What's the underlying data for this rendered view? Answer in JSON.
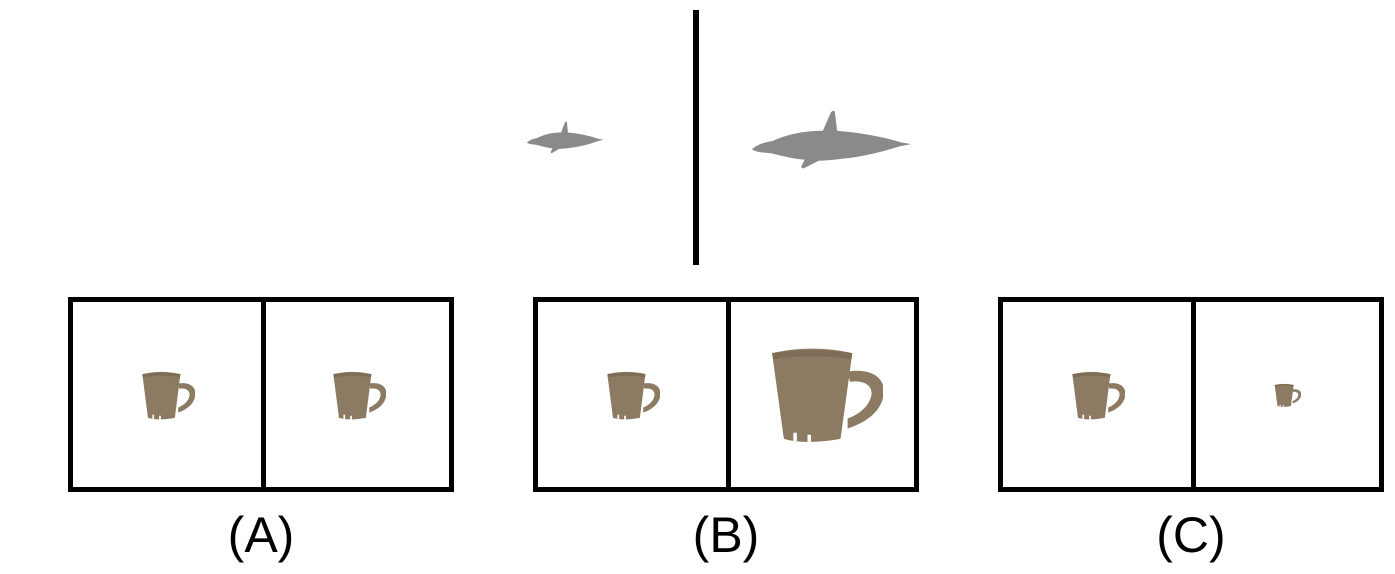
{
  "figure": {
    "top_comparison": {
      "left_object": "dolphin",
      "right_object": "dolphin",
      "object_color": "#8a8a8a"
    },
    "options": [
      {
        "id": "A",
        "label": "(A)",
        "left_object": "mug",
        "right_object": "mug"
      },
      {
        "id": "B",
        "label": "(B)",
        "left_object": "mug",
        "right_object": "mug"
      },
      {
        "id": "C",
        "label": "(C)",
        "left_object": "mug",
        "right_object": "mug"
      }
    ],
    "mug_color": "#8c7b62",
    "border_color": "#000000",
    "icons": {
      "dolphin": "dolphin-icon",
      "mug": "mug-icon"
    }
  }
}
